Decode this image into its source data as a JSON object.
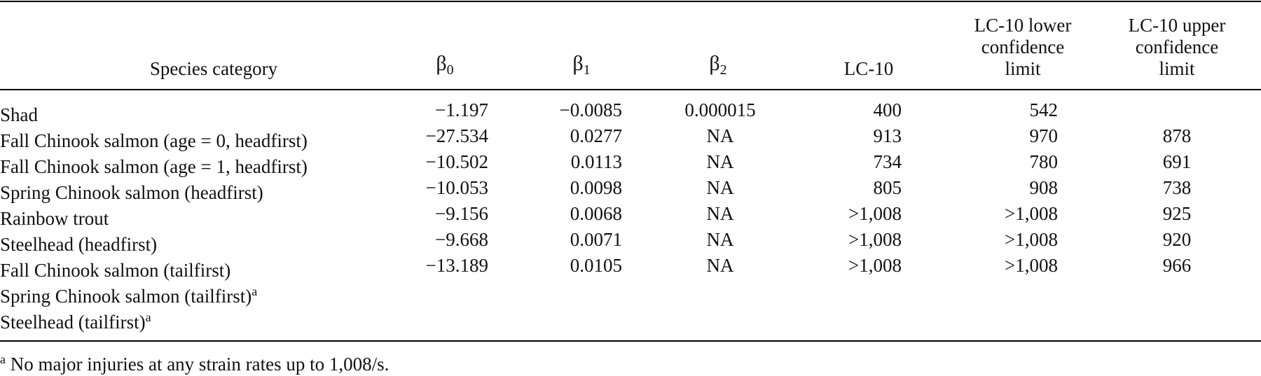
{
  "header": {
    "species": "Species category",
    "b0_sym": "β",
    "b0_sub": "0",
    "b1_sym": "β",
    "b1_sub": "1",
    "b2_sym": "β",
    "b2_sub": "2",
    "lc10": "LC-10",
    "lower": [
      "LC-10 lower",
      "confidence",
      "limit"
    ],
    "upper": [
      "LC-10 upper",
      "confidence",
      "limit"
    ]
  },
  "rows": [
    {
      "species": "Shad",
      "note": "",
      "b0": "−1.197",
      "b1": "−0.0085",
      "b2": "0.000015",
      "lc10": "400",
      "lower": "542",
      "upper": ""
    },
    {
      "species": "Fall Chinook salmon (age = 0, headfirst)",
      "note": "",
      "b0": "−27.534",
      "b1": "0.0277",
      "b2": "NA",
      "lc10": "913",
      "lower": "970",
      "upper": "878"
    },
    {
      "species": "Fall Chinook salmon (age = 1, headfirst)",
      "note": "",
      "b0": "−10.502",
      "b1": "0.0113",
      "b2": "NA",
      "lc10": "734",
      "lower": "780",
      "upper": "691"
    },
    {
      "species": "Spring Chinook salmon (headfirst)",
      "note": "",
      "b0": "−10.053",
      "b1": "0.0098",
      "b2": "NA",
      "lc10": "805",
      "lower": "908",
      "upper": "738"
    },
    {
      "species": "Rainbow trout",
      "note": "",
      "b0": "−9.156",
      "b1": "0.0068",
      "b2": "NA",
      "lc10": ">1,008",
      "lower": ">1,008",
      "upper": "925"
    },
    {
      "species": "Steelhead (headfirst)",
      "note": "",
      "b0": "−9.668",
      "b1": "0.0071",
      "b2": "NA",
      "lc10": ">1,008",
      "lower": ">1,008",
      "upper": "920"
    },
    {
      "species": "Fall Chinook salmon (tailfirst)",
      "note": "",
      "b0": "−13.189",
      "b1": "0.0105",
      "b2": "NA",
      "lc10": ">1,008",
      "lower": ">1,008",
      "upper": "966"
    },
    {
      "species": "Spring Chinook salmon (tailfirst)",
      "note": "a",
      "b0": "",
      "b1": "",
      "b2": "",
      "lc10": "",
      "lower": "",
      "upper": ""
    },
    {
      "species": "Steelhead (tailfirst)",
      "note": "a",
      "b0": "",
      "b1": "",
      "b2": "",
      "lc10": "",
      "lower": "",
      "upper": ""
    }
  ],
  "footnote": {
    "marker": "a",
    "text": " No major injuries at any strain rates up to 1,008/s."
  }
}
